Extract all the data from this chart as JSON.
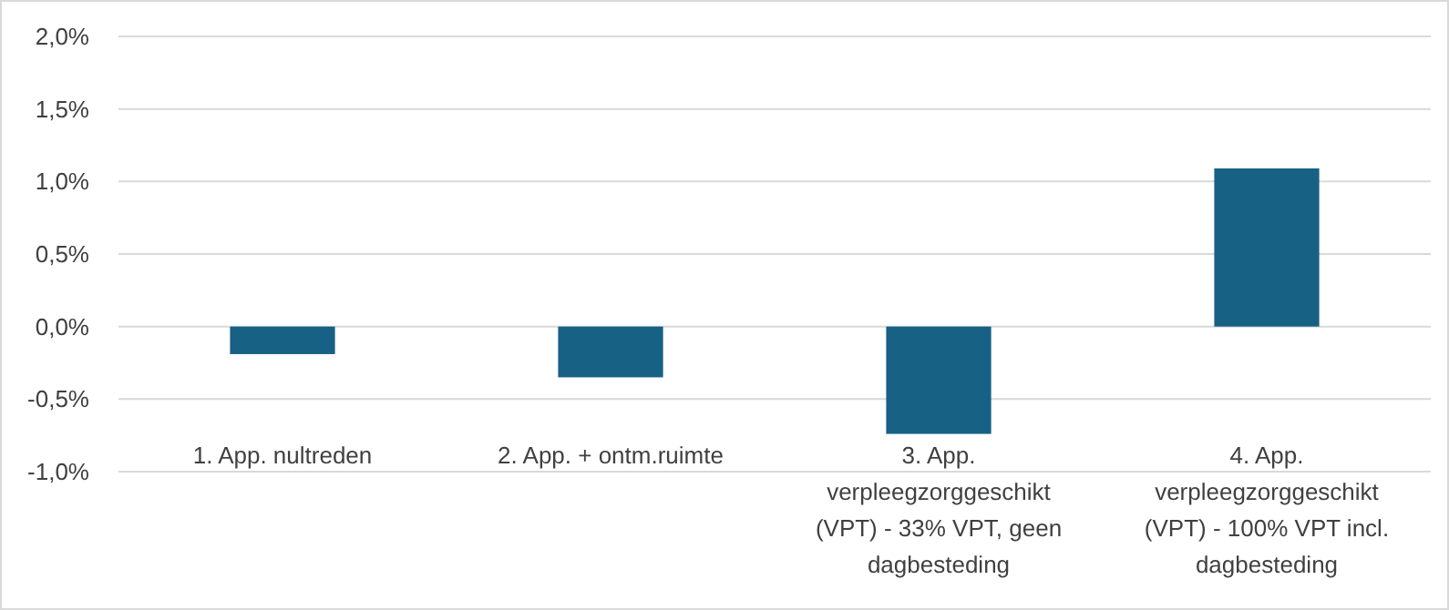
{
  "chart_data": {
    "type": "bar",
    "categories": [
      "1. App. nultreden",
      "2. App. + ontm.ruimte",
      "3. App. verpleegzorggeschikt (VPT) - 33% VPT, geen dagbesteding",
      "4. App. verpleegzorggeschikt (VPT) - 100% VPT incl. dagbesteding"
    ],
    "values": [
      -0.19,
      -0.35,
      -0.74,
      1.09
    ],
    "color": "#176185",
    "ylim": [
      -1.0,
      2.0
    ],
    "yticks": [
      {
        "value": -1.0,
        "label": "-1,0%"
      },
      {
        "value": -0.5,
        "label": "-0,5%"
      },
      {
        "value": 0,
        "label": "0,0%"
      },
      {
        "value": 0.5,
        "label": "0,5%"
      },
      {
        "value": 1.0,
        "label": "1,0%"
      },
      {
        "value": 1.5,
        "label": "1,5%"
      },
      {
        "value": 2.0,
        "label": "2,0%"
      }
    ],
    "grid": "y"
  }
}
